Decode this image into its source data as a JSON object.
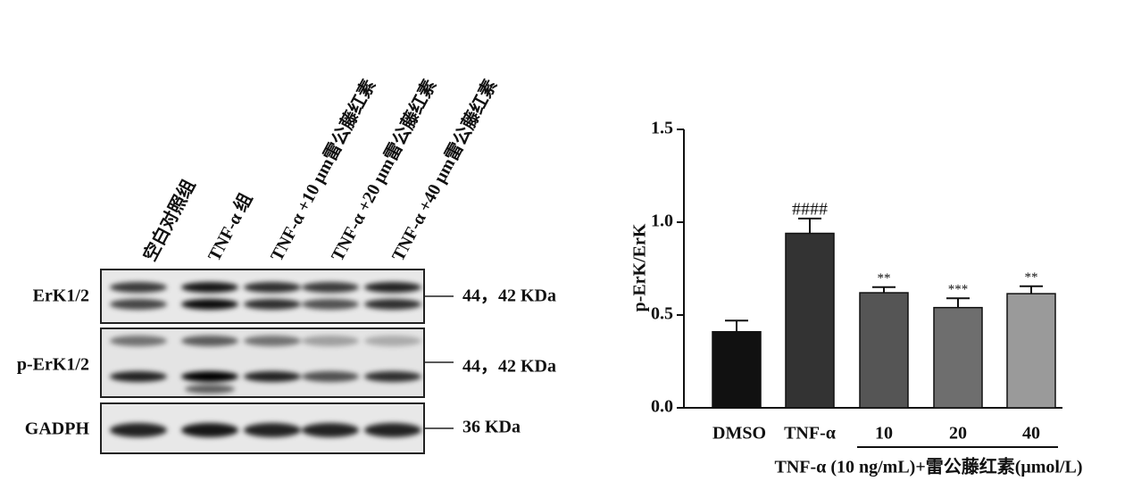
{
  "blot": {
    "lanes": [
      "空白对照组",
      "TNF-α 组",
      "TNF-α +10 μm雷公藤红素",
      "TNF-α +20 μm雷公藤红素",
      "TNF-α +40 μm雷公藤红素"
    ],
    "rows": [
      {
        "name": "ErK1/2",
        "size": "44，42 KDa"
      },
      {
        "name": "p-ErK1/2",
        "size": "44，42 KDa"
      },
      {
        "name": "GADPH",
        "size": "36 KDa"
      }
    ]
  },
  "chart_data": {
    "type": "bar",
    "y_label": "p-ErK/ErK",
    "x_label": "TNF-α (10 ng/mL)+雷公藤红素(μmol/L)",
    "categories": [
      "DMSO",
      "TNF-α",
      "10",
      "20",
      "40"
    ],
    "values": [
      0.41,
      0.94,
      0.62,
      0.54,
      0.615
    ],
    "errors": [
      0.06,
      0.08,
      0.03,
      0.05,
      0.04
    ],
    "annotations": [
      null,
      "####",
      "**",
      "***",
      "**"
    ],
    "colors": [
      "#111111",
      "#333333",
      "#555555",
      "#6e6e6e",
      "#9a9a9a"
    ],
    "ylim": [
      0,
      1.5
    ],
    "yticks": [
      {
        "value": 0,
        "label": "0.0"
      },
      0.5,
      {
        "value": 1,
        "label": "1.0"
      },
      {
        "value": 1.5,
        "label": "1.5"
      }
    ]
  }
}
